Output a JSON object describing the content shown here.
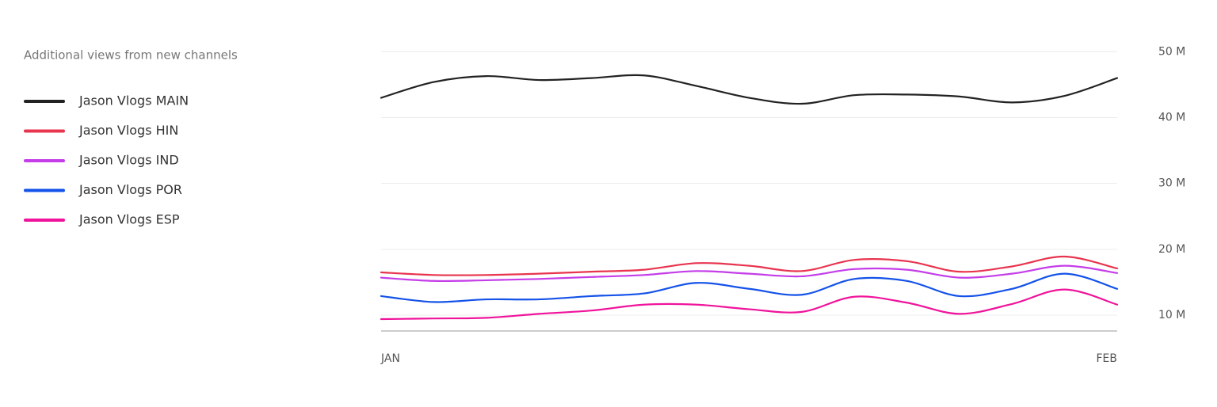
{
  "chart_data": {
    "type": "line",
    "title": "Additional views from new channels",
    "categories": [
      "JAN",
      null,
      null,
      null,
      null,
      null,
      null,
      null,
      null,
      null,
      null,
      null,
      null,
      null,
      "FEB"
    ],
    "series": [
      {
        "name": "Jason Vlogs MAIN",
        "color": "#222222",
        "values": [
          43.0,
          45.4,
          46.3,
          45.7,
          46.0,
          46.4,
          44.8,
          43.0,
          42.1,
          43.4,
          43.5,
          43.2,
          42.3,
          43.3,
          46.0
        ]
      },
      {
        "name": "Jason Vlogs HIN",
        "color": "#e8344e",
        "values": [
          16.5,
          16.1,
          16.1,
          16.3,
          16.6,
          16.9,
          17.9,
          17.5,
          16.7,
          18.4,
          18.2,
          16.6,
          17.4,
          18.9,
          17.1
        ]
      },
      {
        "name": "Jason Vlogs IND",
        "color": "#c43de8",
        "values": [
          15.7,
          15.2,
          15.3,
          15.5,
          15.8,
          16.1,
          16.7,
          16.3,
          15.9,
          17.0,
          16.9,
          15.7,
          16.3,
          17.5,
          16.4
        ]
      },
      {
        "name": "Jason Vlogs POR",
        "color": "#1452e8",
        "values": [
          12.9,
          12.0,
          12.4,
          12.4,
          12.9,
          13.3,
          14.9,
          14.0,
          13.1,
          15.5,
          15.2,
          12.9,
          14.0,
          16.3,
          14.0
        ]
      },
      {
        "name": "Jason Vlogs ESP",
        "color": "#f0139b",
        "values": [
          9.4,
          9.5,
          9.6,
          10.2,
          10.7,
          11.6,
          11.6,
          10.9,
          10.5,
          12.8,
          11.9,
          10.2,
          11.7,
          13.9,
          11.6
        ]
      }
    ],
    "ylim": [
      7.6,
      51
    ],
    "yticks": [
      {
        "value": 10,
        "label": "10 M"
      },
      {
        "value": 20,
        "label": "20 M"
      },
      {
        "value": 30,
        "label": "30 M"
      },
      {
        "value": 40,
        "label": "40 M"
      },
      {
        "value": 50,
        "label": "50 M"
      }
    ],
    "grid": true
  }
}
